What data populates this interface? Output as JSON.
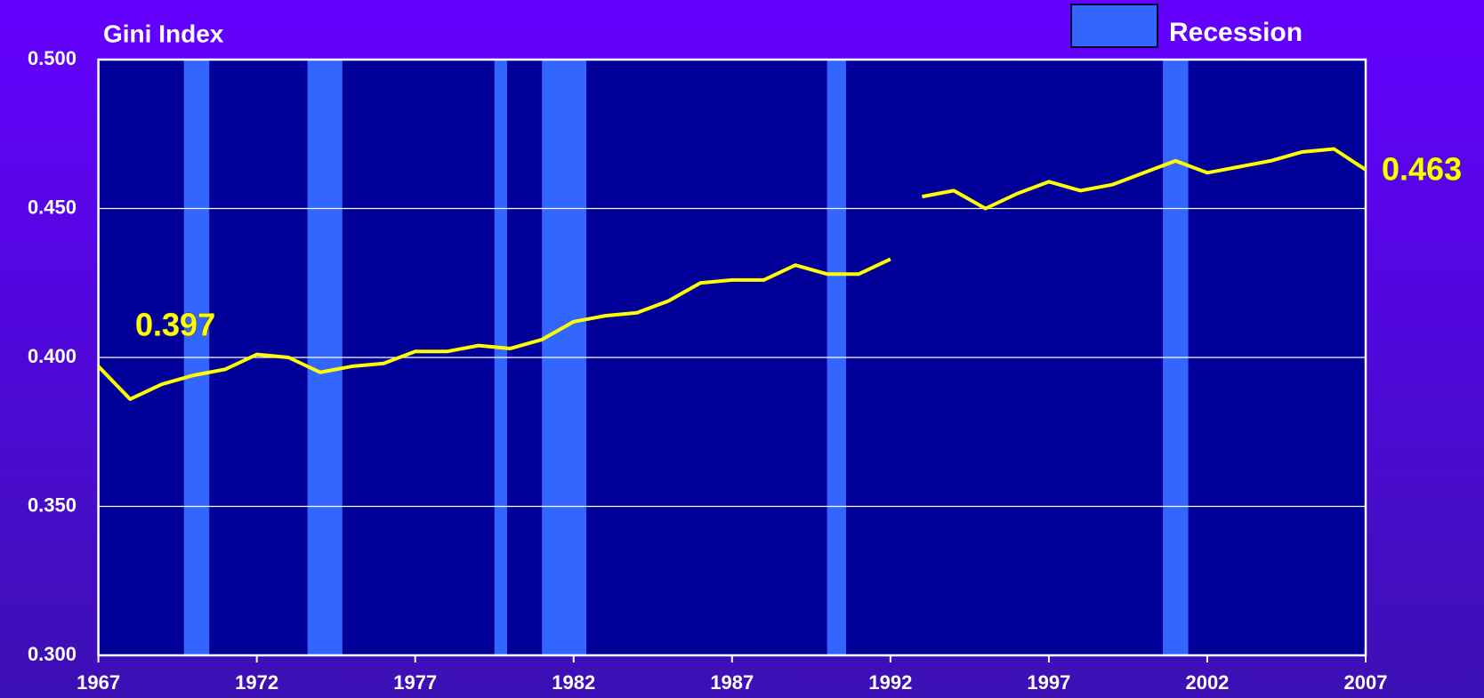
{
  "chart_data": {
    "type": "line",
    "y_label": "Gini Index",
    "legend_label": "Recession",
    "recession_color": "#3366ff",
    "recessions": [
      [
        1969.7,
        1970.5
      ],
      [
        1973.6,
        1974.7
      ],
      [
        1979.5,
        1979.9
      ],
      [
        1981.0,
        1982.4
      ],
      [
        1990.0,
        1990.6
      ],
      [
        2000.6,
        2001.4
      ]
    ],
    "series": [
      {
        "color": "#ffff00",
        "x": [
          1967,
          1968,
          1969,
          1970,
          1971,
          1972,
          1973,
          1974,
          1975,
          1976,
          1977,
          1978,
          1979,
          1980,
          1981,
          1982,
          1983,
          1984,
          1985,
          1986,
          1987,
          1988,
          1989,
          1990,
          1991,
          1992
        ],
        "values": [
          0.397,
          0.386,
          0.391,
          0.394,
          0.396,
          0.401,
          0.4,
          0.395,
          0.397,
          0.398,
          0.402,
          0.402,
          0.404,
          0.403,
          0.406,
          0.412,
          0.414,
          0.415,
          0.419,
          0.425,
          0.426,
          0.426,
          0.431,
          0.428,
          0.428,
          0.433
        ]
      },
      {
        "color": "#ffff00",
        "x": [
          1993,
          1994,
          1995,
          1996,
          1997,
          1998,
          1999,
          2000,
          2001,
          2002,
          2003,
          2004,
          2005,
          2006,
          2007
        ],
        "values": [
          0.454,
          0.456,
          0.45,
          0.455,
          0.459,
          0.456,
          0.458,
          0.462,
          0.466,
          0.462,
          0.464,
          0.466,
          0.469,
          0.47,
          0.463
        ]
      }
    ],
    "annotations": [
      {
        "text": "0.397"
      },
      {
        "text": "0.463"
      }
    ],
    "xlim": [
      1967,
      2007
    ],
    "xticks": [
      1967,
      1972,
      1977,
      1982,
      1987,
      1992,
      1997,
      2002,
      2007
    ],
    "ylim": [
      0.3,
      0.5
    ],
    "yticks": [
      {
        "value": 0.3,
        "label": "0.300"
      },
      {
        "value": 0.35,
        "label": "0.350"
      },
      {
        "value": 0.4,
        "label": "0.400"
      },
      {
        "value": 0.45,
        "label": "0.450"
      },
      {
        "value": 0.5,
        "label": "0.500"
      }
    ],
    "grid": true
  }
}
